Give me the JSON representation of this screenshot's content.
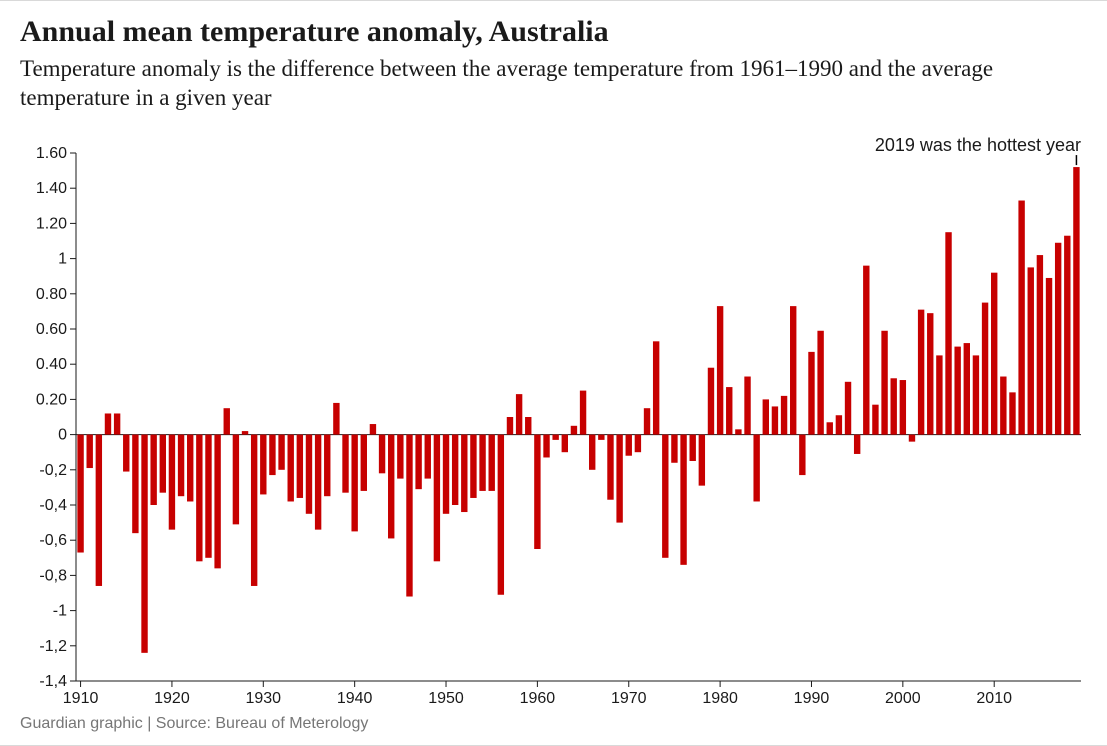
{
  "title": "Annual mean temperature anomaly, Australia",
  "subtitle": "Temperature anomaly is the difference between the average temperature from 1961–1990 and the average temperature in a given year",
  "source": "Guardian graphic | Source: Bureau of Meterology",
  "chart": {
    "type": "bar",
    "bar_color": "#c70000",
    "axis_color": "#1a1a1a",
    "tick_color": "#1a1a1a",
    "axis_font_family": "sans-serif",
    "axis_fontsize": 16,
    "annotation_fontsize": 18,
    "x_start": 1910,
    "x_end": 2019,
    "y_min": -1.4,
    "y_max": 1.6,
    "y_ticks": [
      -1.4,
      -1.2,
      -1.0,
      -0.8,
      -0.6,
      -0.4,
      -0.2,
      0,
      0.2,
      0.4,
      0.6,
      0.8,
      1.0,
      1.2,
      1.4,
      1.6
    ],
    "y_tick_labels": [
      "-1,4",
      "-1,2",
      "-1",
      "-0,8",
      "-0,6",
      "-0,4",
      "-0,2",
      "0",
      "0.20",
      "0.40",
      "0.60",
      "0.80",
      "1",
      "1.20",
      "1.40",
      "1.60"
    ],
    "x_ticks": [
      1910,
      1920,
      1930,
      1940,
      1950,
      1960,
      1970,
      1980,
      1990,
      2000,
      2010
    ],
    "bar_width_ratio": 0.7,
    "annotation": {
      "text": "2019 was the hottest year",
      "target_year": 2019,
      "text_anchor": "end"
    },
    "values": [
      -0.67,
      -0.19,
      -0.86,
      0.12,
      0.12,
      -0.21,
      -0.56,
      -1.24,
      -0.4,
      -0.33,
      -0.54,
      -0.35,
      -0.38,
      -0.72,
      -0.7,
      -0.76,
      0.15,
      -0.51,
      0.02,
      -0.86,
      -0.34,
      -0.23,
      -0.2,
      -0.38,
      -0.36,
      -0.45,
      -0.54,
      -0.35,
      0.18,
      -0.33,
      -0.55,
      -0.32,
      0.06,
      -0.22,
      -0.59,
      -0.25,
      -0.92,
      -0.31,
      -0.25,
      -0.72,
      -0.45,
      -0.4,
      -0.44,
      -0.36,
      -0.32,
      -0.32,
      -0.91,
      0.1,
      0.23,
      0.1,
      -0.65,
      -0.13,
      -0.03,
      -0.1,
      0.05,
      0.25,
      -0.2,
      -0.03,
      -0.37,
      -0.5,
      -0.12,
      -0.1,
      0.15,
      0.53,
      -0.7,
      -0.16,
      -0.74,
      -0.15,
      -0.29,
      0.38,
      0.73,
      0.27,
      0.03,
      0.33,
      -0.38,
      0.2,
      0.16,
      0.22,
      0.73,
      -0.23,
      0.47,
      0.59,
      0.07,
      0.11,
      0.3,
      -0.11,
      0.96,
      0.17,
      0.59,
      0.32,
      0.31,
      -0.04,
      0.71,
      0.69,
      0.45,
      1.15,
      0.5,
      0.52,
      0.45,
      0.75,
      0.92,
      0.33,
      0.24,
      1.33,
      0.95,
      1.02,
      0.89,
      1.09,
      1.13,
      1.52
    ]
  }
}
